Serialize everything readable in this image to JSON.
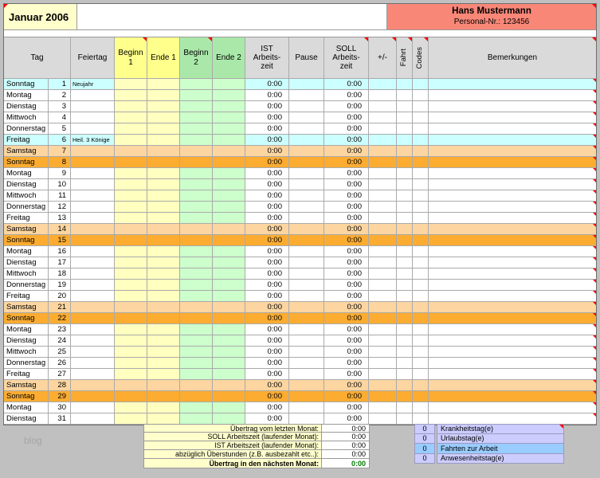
{
  "title": {
    "month": "Januar 2006"
  },
  "employee": {
    "name": "Hans Mustermann",
    "personal_nr": "Personal-Nr.: 123456"
  },
  "columns": {
    "tag": "Tag",
    "feiertag": "Feiertag",
    "beginn1": "Beginn\n1",
    "ende1": "Ende 1",
    "beginn2": "Beginn\n2",
    "ende2": "Ende 2",
    "ist": "IST\nArbeits-\nzeit",
    "pause": "Pause",
    "soll": "SOLL\nArbeits-\nzeit",
    "plusminus": "+/-",
    "fahrt": "Fahrt",
    "codes": "Codes",
    "bemerkungen": "Bemerkungen"
  },
  "days": [
    {
      "name": "Sonntag",
      "num": "1",
      "feiertag": "Neujahr",
      "ist": "0:00",
      "soll": "0:00",
      "type": "holiday"
    },
    {
      "name": "Montag",
      "num": "2",
      "ist": "0:00",
      "soll": "0:00",
      "type": "weekday"
    },
    {
      "name": "Dienstag",
      "num": "3",
      "ist": "0:00",
      "soll": "0:00",
      "type": "weekday"
    },
    {
      "name": "Mittwoch",
      "num": "4",
      "ist": "0:00",
      "soll": "0:00",
      "type": "weekday"
    },
    {
      "name": "Donnerstag",
      "num": "5",
      "ist": "0:00",
      "soll": "0:00",
      "type": "weekday"
    },
    {
      "name": "Freitag",
      "num": "6",
      "feiertag": "Heil. 3 Könige",
      "ist": "0:00",
      "soll": "0:00",
      "type": "holiday"
    },
    {
      "name": "Samstag",
      "num": "7",
      "ist": "0:00",
      "soll": "0:00",
      "type": "saturday"
    },
    {
      "name": "Sonntag",
      "num": "8",
      "ist": "0:00",
      "soll": "0:00",
      "type": "sunday"
    },
    {
      "name": "Montag",
      "num": "9",
      "ist": "0:00",
      "soll": "0:00",
      "type": "weekday"
    },
    {
      "name": "Dienstag",
      "num": "10",
      "ist": "0:00",
      "soll": "0:00",
      "type": "weekday"
    },
    {
      "name": "Mittwoch",
      "num": "11",
      "ist": "0:00",
      "soll": "0:00",
      "type": "weekday"
    },
    {
      "name": "Donnerstag",
      "num": "12",
      "ist": "0:00",
      "soll": "0:00",
      "type": "weekday"
    },
    {
      "name": "Freitag",
      "num": "13",
      "ist": "0:00",
      "soll": "0:00",
      "type": "weekday"
    },
    {
      "name": "Samstag",
      "num": "14",
      "ist": "0:00",
      "soll": "0:00",
      "type": "saturday"
    },
    {
      "name": "Sonntag",
      "num": "15",
      "ist": "0:00",
      "soll": "0:00",
      "type": "sunday"
    },
    {
      "name": "Montag",
      "num": "16",
      "ist": "0:00",
      "soll": "0:00",
      "type": "weekday"
    },
    {
      "name": "Dienstag",
      "num": "17",
      "ist": "0:00",
      "soll": "0:00",
      "type": "weekday"
    },
    {
      "name": "Mittwoch",
      "num": "18",
      "ist": "0:00",
      "soll": "0:00",
      "type": "weekday"
    },
    {
      "name": "Donnerstag",
      "num": "19",
      "ist": "0:00",
      "soll": "0:00",
      "type": "weekday"
    },
    {
      "name": "Freitag",
      "num": "20",
      "ist": "0:00",
      "soll": "0:00",
      "type": "weekday"
    },
    {
      "name": "Samstag",
      "num": "21",
      "ist": "0:00",
      "soll": "0:00",
      "type": "saturday"
    },
    {
      "name": "Sonntag",
      "num": "22",
      "ist": "0:00",
      "soll": "0:00",
      "type": "sunday"
    },
    {
      "name": "Montag",
      "num": "23",
      "ist": "0:00",
      "soll": "0:00",
      "type": "weekday"
    },
    {
      "name": "Dienstag",
      "num": "24",
      "ist": "0:00",
      "soll": "0:00",
      "type": "weekday"
    },
    {
      "name": "Mittwoch",
      "num": "25",
      "ist": "0:00",
      "soll": "0:00",
      "type": "weekday"
    },
    {
      "name": "Donnerstag",
      "num": "26",
      "ist": "0:00",
      "soll": "0:00",
      "type": "weekday"
    },
    {
      "name": "Freitag",
      "num": "27",
      "ist": "0:00",
      "soll": "0:00",
      "type": "weekday"
    },
    {
      "name": "Samstag",
      "num": "28",
      "ist": "0:00",
      "soll": "0:00",
      "type": "saturday"
    },
    {
      "name": "Sonntag",
      "num": "29",
      "ist": "0:00",
      "soll": "0:00",
      "type": "sunday"
    },
    {
      "name": "Montag",
      "num": "30",
      "ist": "0:00",
      "soll": "0:00",
      "type": "weekday"
    },
    {
      "name": "Dienstag",
      "num": "31",
      "ist": "0:00",
      "soll": "0:00",
      "type": "weekday"
    }
  ],
  "summary_left": [
    {
      "label": "Übertrag vom letzten Monat:",
      "value": "0:00"
    },
    {
      "label": "SOLL Arbeitszeit (laufender Monat):",
      "value": "0:00"
    },
    {
      "label": "IST Arbeitszeit (laufender Monat):",
      "value": "0:00"
    },
    {
      "label": "abzüglich Überstunden (z.B. ausbezahlt etc..):",
      "value": "0:00"
    },
    {
      "label": "Übertrag in den nächsten Monat:",
      "value": "0:00",
      "bold": true,
      "value_green": true
    }
  ],
  "summary_right": [
    {
      "value": "0",
      "label": "Krankheitstag(e)",
      "highlight": false,
      "marker": true
    },
    {
      "value": "0",
      "label": "Urlaubstag(e)",
      "highlight": false
    },
    {
      "value": "0",
      "label": "Fahrten zur Arbeit",
      "highlight": true
    },
    {
      "value": "0",
      "label": "Anwesenheitstag(e)",
      "highlight": false
    }
  ],
  "watermark": "blog",
  "colors": {
    "title_yellow": "#FFFFCC",
    "employee_header": "#F98778",
    "header_gray": "#DADADA",
    "header_yellow": "#FFFF8C",
    "header_green": "#A9E8A9",
    "input_yellow": "#FFFFC0",
    "input_green": "#CCFFCC",
    "holiday_row": "#CCFFFF",
    "saturday_row": "#FCD5A0",
    "sunday_row": "#FBAC31",
    "lavender": "#CCCCFF",
    "blue_highlight": "#99CCFF",
    "marker_red": "#FF0000",
    "total_green": "#007A00"
  }
}
